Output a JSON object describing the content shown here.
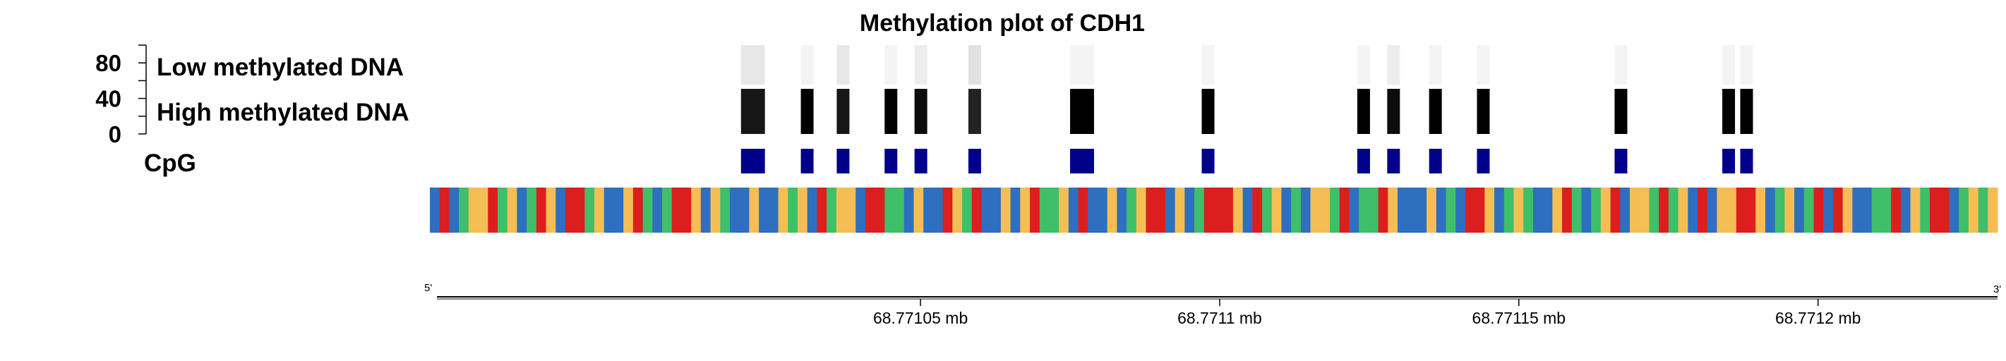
{
  "chart_data": {
    "type": "heatmap",
    "title": "Methylation plot of CDH1",
    "row_labels": {
      "low": "Low methylated DNA",
      "high": "High methylated DNA",
      "cpg": "CpG"
    },
    "y_axis": {
      "ticks": [
        "0",
        "40",
        "80"
      ],
      "ylim": [
        0,
        100
      ]
    },
    "x_axis": {
      "unit": "mb",
      "range": [
        68.770968,
        68.77123
      ],
      "ticks": [
        {
          "value": 68.77105,
          "label": "68.77105 mb"
        },
        {
          "value": 68.7711,
          "label": "68.7711 mb"
        },
        {
          "value": 68.77115,
          "label": "68.77115 mb"
        },
        {
          "value": 68.7712,
          "label": "68.7712 mb"
        }
      ],
      "start_label": "5'",
      "end_label": "3'"
    },
    "cpg_sites": [
      {
        "start": 68.77102,
        "end": 68.771024,
        "methylation": 90
      },
      {
        "start": 68.77103,
        "end": 68.771032,
        "methylation": 100
      },
      {
        "start": 68.771036,
        "end": 68.771038,
        "methylation": 90
      },
      {
        "start": 68.771044,
        "end": 68.771046,
        "methylation": 100
      },
      {
        "start": 68.771049,
        "end": 68.771051,
        "methylation": 95
      },
      {
        "start": 68.771058,
        "end": 68.77106,
        "methylation": 85
      },
      {
        "start": 68.771075,
        "end": 68.771079,
        "methylation": 100
      },
      {
        "start": 68.771097,
        "end": 68.771099,
        "methylation": 100
      },
      {
        "start": 68.771123,
        "end": 68.771125,
        "methylation": 100
      },
      {
        "start": 68.771128,
        "end": 68.77113,
        "methylation": 95
      },
      {
        "start": 68.771135,
        "end": 68.771137,
        "methylation": 100
      },
      {
        "start": 68.771143,
        "end": 68.771145,
        "methylation": 100
      },
      {
        "start": 68.771166,
        "end": 68.771168,
        "methylation": 100
      },
      {
        "start": 68.771184,
        "end": 68.771186,
        "methylation": 100
      },
      {
        "start": 68.771187,
        "end": 68.771189,
        "methylation": 100
      }
    ],
    "sequence": "CTCAGGTAGCATGCTTAGCCGTACATTGCGACCGCCGAGCTAGGCTTAACGCCTGATCCGCGTAAGCTCCGCAGTTCGCATTTGCTAGCACGGATCAATGCCCGCACTTGCAGACCGTACAGTCGGATAGCTCGGTTGCAGCATCTGCCAATCGATTCAGAG",
    "base_colors": {
      "A": "#3fbf6a",
      "C": "#2e6fc0",
      "G": "#f5be55",
      "T": "#dc1e1e"
    },
    "colors": {
      "cpg": "#00008b",
      "methylated": "#000000",
      "unmethylated": "#e6e6e6"
    }
  }
}
